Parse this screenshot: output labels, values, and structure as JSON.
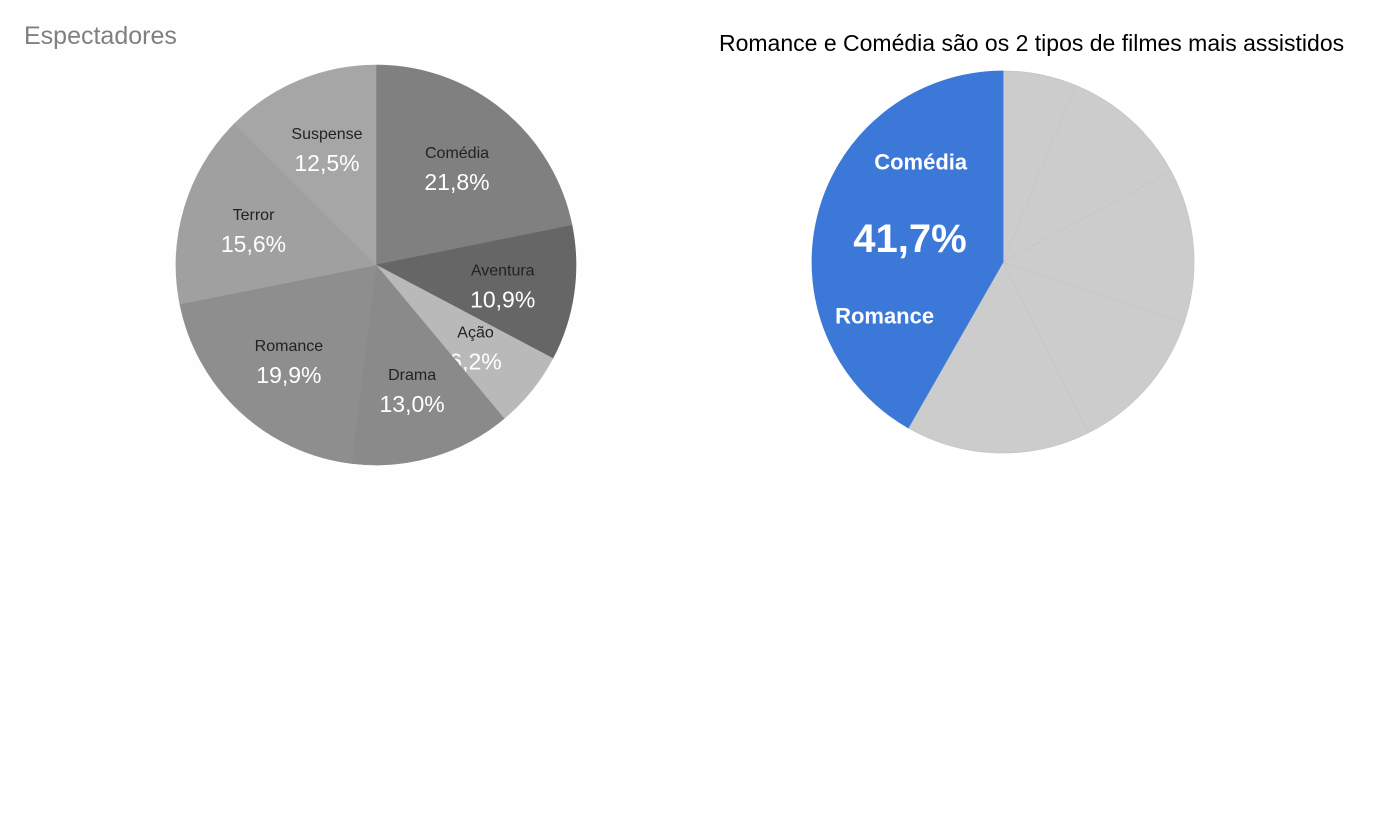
{
  "chart_data": [
    {
      "type": "pie",
      "title": "Espectadores",
      "slices": [
        {
          "label": "Comédia",
          "value": 21.8,
          "display": "21,8%",
          "color": "#808080"
        },
        {
          "label": "Aventura",
          "value": 10.9,
          "display": "10,9%",
          "color": "#666666"
        },
        {
          "label": "Ação",
          "value": 6.2,
          "display": "6,2%",
          "color": "#b9b9b9"
        },
        {
          "label": "Drama",
          "value": 13.0,
          "display": "13,0%",
          "color": "#8a8a8a"
        },
        {
          "label": "Romance",
          "value": 19.9,
          "display": "19,9%",
          "color": "#8e8e8e"
        },
        {
          "label": "Terror",
          "value": 15.6,
          "display": "15,6%",
          "color": "#a0a0a0"
        },
        {
          "label": "Suspense",
          "value": 12.5,
          "display": "12,5%",
          "color": "#a6a6a6"
        }
      ]
    },
    {
      "type": "pie",
      "title": "Romance e Comédia são os 2 tipos de filmes mais assistidos",
      "highlight_color": "#3c78d8",
      "base_color": "#cccccc",
      "highlight_value": "41,7%",
      "slices": [
        {
          "label": "",
          "value": 6.2,
          "highlighted": false
        },
        {
          "label": "",
          "value": 10.9,
          "highlighted": false
        },
        {
          "label": "",
          "value": 13.0,
          "highlighted": false
        },
        {
          "label": "",
          "value": 12.5,
          "highlighted": false
        },
        {
          "label": "",
          "value": 15.6,
          "highlighted": false
        },
        {
          "label": "Romance",
          "value": 19.9,
          "highlighted": true
        },
        {
          "label": "Comédia",
          "value": 21.8,
          "highlighted": true
        }
      ]
    }
  ]
}
